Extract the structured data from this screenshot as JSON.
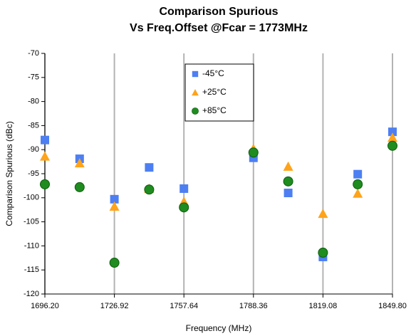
{
  "chart_data": {
    "type": "scatter",
    "title": [
      "Comparison Spurious",
      "Vs Freq.Offset @Fcar = 1773MHz"
    ],
    "xlabel": "Frequency (MHz)",
    "ylabel": "Comparison Spurious  (dBc)",
    "xlim": [
      1696.2,
      1849.8
    ],
    "xticks": [
      {
        "value": 1696.2,
        "label": "1696.20"
      },
      {
        "value": 1726.92,
        "label": "1726.92"
      },
      {
        "value": 1757.64,
        "label": "1757.64"
      },
      {
        "value": 1788.36,
        "label": "1788.36"
      },
      {
        "value": 1819.08,
        "label": "1819.08"
      },
      {
        "value": 1849.8,
        "label": "1849.80"
      }
    ],
    "ylim": [
      -120,
      -70
    ],
    "yticks": [
      -120,
      -115,
      -110,
      -105,
      -100,
      -95,
      -90,
      -85,
      -80,
      -75,
      -70
    ],
    "grid": "x",
    "x": [
      1696.2,
      1711.56,
      1726.92,
      1742.28,
      1757.64,
      1788.36,
      1803.72,
      1819.08,
      1834.44,
      1849.8
    ],
    "series": [
      {
        "name": "-45°C",
        "color": "#4d7ff2",
        "marker": "square",
        "values": [
          -88.0,
          -91.9,
          -100.3,
          -93.7,
          -98.1,
          -91.7,
          -99.0,
          -112.3,
          -95.1,
          -86.3
        ]
      },
      {
        "name": "+25°C",
        "color": "#ffa31a",
        "marker": "triangle",
        "values": [
          -91.4,
          -92.8,
          -101.8,
          -98.1,
          -100.8,
          -89.8,
          -93.5,
          -103.3,
          -99.1,
          -87.5
        ]
      },
      {
        "name": "+85°C",
        "color": "#1f8c1f",
        "marker": "circle",
        "values": [
          -97.2,
          -97.8,
          -113.5,
          -98.3,
          -102.0,
          -90.6,
          -96.6,
          -111.4,
          -97.2,
          -89.2
        ]
      }
    ]
  }
}
